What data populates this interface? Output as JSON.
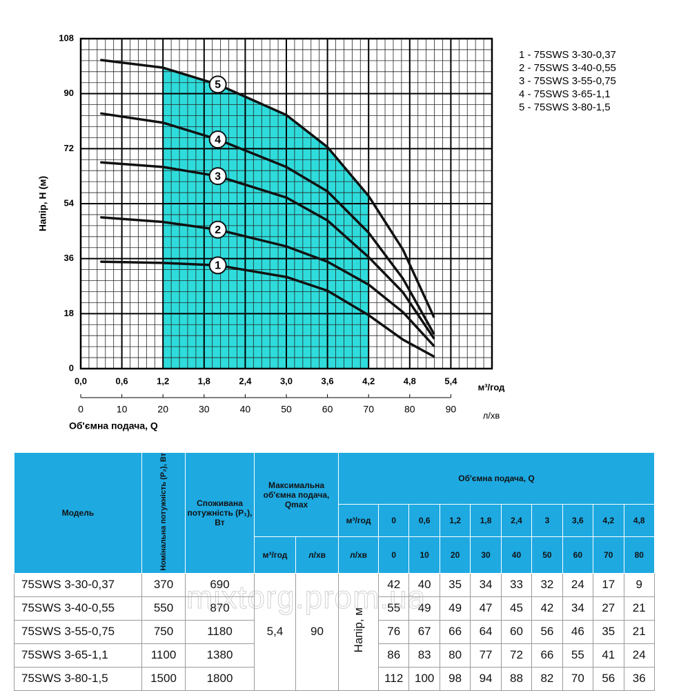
{
  "chart_data": {
    "type": "line",
    "y_label": "Напір, Н (м)",
    "x_label": "Об'ємна подача, Q",
    "x_unit": "м³/год",
    "x2_unit": "л/хв",
    "xlim": [
      0,
      6
    ],
    "ylim": [
      0,
      108
    ],
    "x2lim": [
      0,
      100
    ],
    "xticks": [
      {
        "value": 0,
        "label": "0,0"
      },
      {
        "value": 0.6,
        "label": "0,6"
      },
      {
        "value": 1.2,
        "label": "1,2"
      },
      {
        "value": 1.8,
        "label": "1,8"
      },
      {
        "value": 2.4,
        "label": "2,4"
      },
      {
        "value": 3.0,
        "label": "3,0"
      },
      {
        "value": 3.6,
        "label": "3,6"
      },
      {
        "value": 4.2,
        "label": "4,2"
      },
      {
        "value": 4.8,
        "label": "4,8"
      },
      {
        "value": 5.4,
        "label": "5,4"
      }
    ],
    "yticks": [
      0,
      18,
      36,
      54,
      72,
      90,
      108
    ],
    "x2ticks": [
      0,
      10,
      20,
      30,
      40,
      50,
      60,
      70,
      80,
      90
    ],
    "grid": true,
    "minor_divisions": 5,
    "highlight": {
      "xlim": [
        1.2,
        4.2
      ],
      "color": "#2fdcdc"
    },
    "x": [
      0.3,
      1.2,
      2.0,
      3.0,
      3.6,
      4.2,
      4.7,
      5.15
    ],
    "series": [
      {
        "name": "1 - 75SWS 3-30-0,37",
        "marker": "1",
        "color": "#111111",
        "values": [
          35,
          34.6,
          33.8,
          30,
          25.5,
          17.5,
          9.5,
          4
        ]
      },
      {
        "name": "2 - 75SWS 3-40-0,55",
        "marker": "2",
        "color": "#111111",
        "values": [
          49.5,
          48,
          45.5,
          40,
          35,
          27.5,
          18.5,
          7.5
        ]
      },
      {
        "name": "3 - 75SWS 3-55-0,75",
        "marker": "3",
        "color": "#111111",
        "values": [
          67.5,
          66,
          63,
          56,
          48.5,
          36.5,
          25,
          10
        ]
      },
      {
        "name": "4 - 75SWS 3-65-1,1",
        "marker": "4",
        "color": "#111111",
        "values": [
          83.5,
          80.5,
          75,
          66,
          58,
          44.5,
          29.5,
          11.5
        ]
      },
      {
        "name": "5 - 75SWS 3-80-1,5",
        "marker": "5",
        "color": "#111111",
        "values": [
          101,
          98.5,
          93,
          83,
          72.5,
          56.5,
          39,
          17
        ]
      }
    ]
  },
  "table": {
    "headers": {
      "model": "Модель",
      "p2": "Номінальна потужність (P₂), Вт",
      "p1": "Споживана потужність (P₁), Вт",
      "qmax": "Максимальна об'ємна подача, Qmax",
      "qmax_units": [
        "м³/год",
        "л/хв"
      ],
      "flow": "Об'ємна подача, Q",
      "flow_units": [
        "м³/год",
        "л/хв"
      ],
      "flow_m3h": [
        "0",
        "0,6",
        "1,2",
        "1,8",
        "2,4",
        "3",
        "3,6",
        "4,2",
        "4,8"
      ],
      "flow_lmin": [
        0,
        10,
        20,
        30,
        40,
        50,
        60,
        70,
        80
      ]
    },
    "qmax_values": [
      "5,4",
      90
    ],
    "head_label": "Напір, м",
    "rows": [
      {
        "model": "75SWS 3-30-0,37",
        "p2": 370,
        "p1": 690,
        "head": [
          42,
          40,
          35,
          34,
          33,
          32,
          24,
          17,
          9
        ]
      },
      {
        "model": "75SWS 3-40-0,55",
        "p2": 550,
        "p1": 870,
        "head": [
          55,
          49,
          49,
          47,
          45,
          42,
          34,
          27,
          21
        ]
      },
      {
        "model": "75SWS 3-55-0,75",
        "p2": 750,
        "p1": 1180,
        "head": [
          76,
          67,
          66,
          64,
          60,
          56,
          46,
          35,
          21
        ]
      },
      {
        "model": "75SWS 3-65-1,1",
        "p2": 1100,
        "p1": 1380,
        "head": [
          86,
          83,
          80,
          77,
          72,
          66,
          55,
          41,
          24
        ]
      },
      {
        "model": "75SWS 3-80-1,5",
        "p2": 1500,
        "p1": 1800,
        "head": [
          112,
          100,
          98,
          94,
          88,
          82,
          70,
          56,
          36
        ]
      }
    ]
  },
  "watermark": "mixtorg.prom.ua"
}
